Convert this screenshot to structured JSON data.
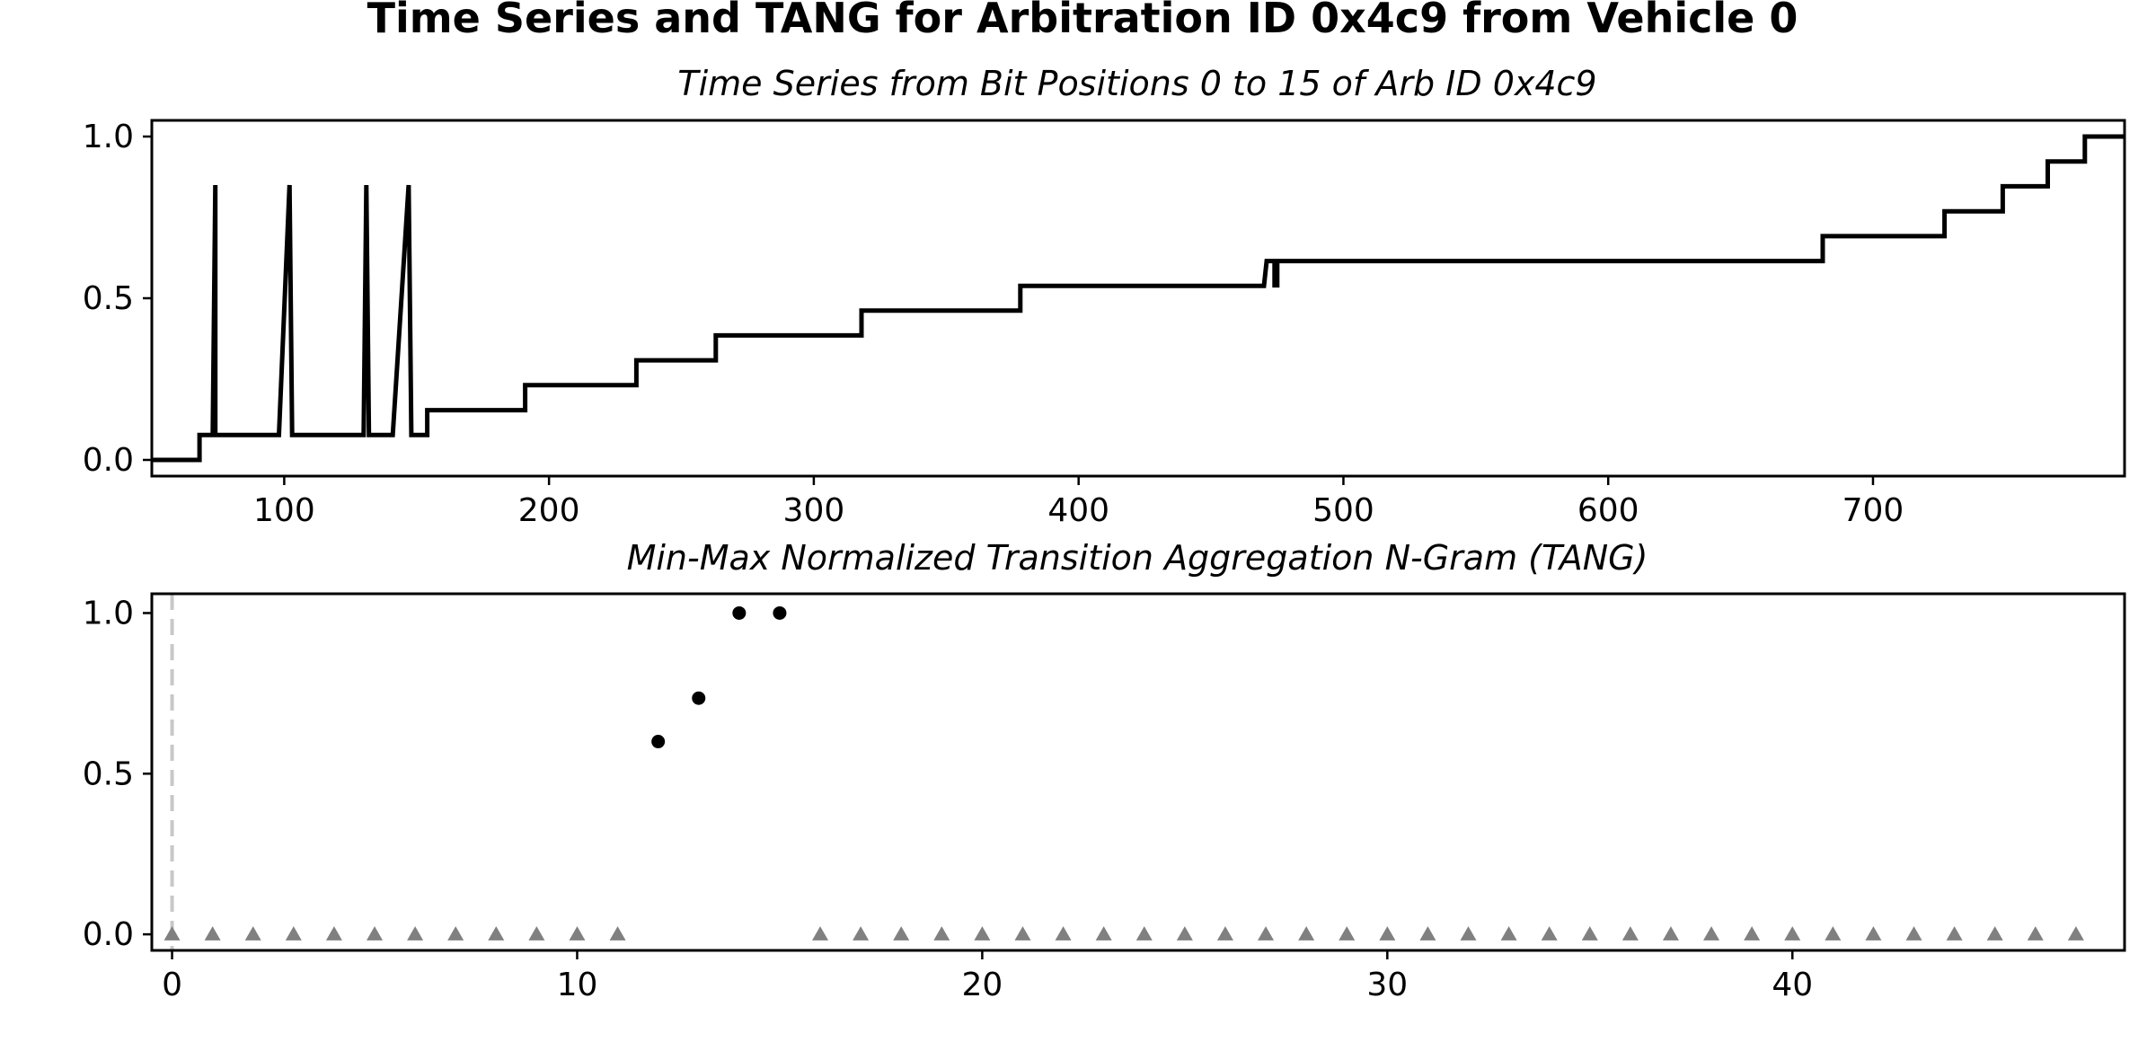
{
  "title": "Time Series and TANG for Arbitration ID 0x4c9 from Vehicle 0",
  "chart_data": [
    {
      "type": "line",
      "title": "Time Series from Bit Positions 0 to 15 of Arb ID 0x4c9",
      "xlabel": "",
      "ylabel": "",
      "xlim": [
        50,
        795
      ],
      "ylim": [
        -0.05,
        1.05
      ],
      "xticks": [
        100,
        200,
        300,
        400,
        500,
        600,
        700
      ],
      "yticks": [
        0.0,
        0.5,
        1.0
      ],
      "xtick_labels": [
        "100",
        "200",
        "300",
        "400",
        "500",
        "600",
        "700"
      ],
      "ytick_labels": [
        "0.0",
        "0.5",
        "1.0"
      ],
      "grid": false,
      "series": [
        {
          "color": "#000000",
          "x": [
            50,
            68,
            68,
            73,
            74,
            74,
            98,
            102,
            103,
            130,
            131,
            132,
            141,
            147,
            148,
            153,
            154,
            154,
            191,
            191,
            233,
            233,
            263,
            263,
            318,
            318,
            378,
            378,
            470,
            471,
            472,
            474,
            474,
            475,
            475,
            681,
            681,
            727,
            727,
            749,
            749,
            766,
            766,
            780,
            780,
            795
          ],
          "y": [
            0.0,
            0.0,
            0.077,
            0.077,
            0.85,
            0.077,
            0.077,
            0.85,
            0.077,
            0.077,
            0.85,
            0.077,
            0.077,
            0.85,
            0.077,
            0.077,
            0.077,
            0.154,
            0.154,
            0.231,
            0.231,
            0.308,
            0.308,
            0.385,
            0.385,
            0.462,
            0.462,
            0.538,
            0.538,
            0.615,
            0.615,
            0.615,
            0.54,
            0.54,
            0.615,
            0.615,
            0.692,
            0.692,
            0.769,
            0.769,
            0.846,
            0.846,
            0.923,
            0.923,
            1.0,
            1.0
          ]
        }
      ]
    },
    {
      "type": "scatter",
      "title": "Min-Max Normalized Transition Aggregation N-Gram (TANG)",
      "xlabel": "",
      "ylabel": "",
      "xlim": [
        -0.5,
        48.2
      ],
      "ylim": [
        -0.05,
        1.06
      ],
      "xticks": [
        0,
        10,
        20,
        30,
        40
      ],
      "yticks": [
        0.0,
        0.5,
        1.0
      ],
      "xtick_labels": [
        "0",
        "10",
        "20",
        "30",
        "40"
      ],
      "ytick_labels": [
        "0.0",
        "0.5",
        "1.0"
      ],
      "grid": false,
      "reference_line": {
        "x": 0,
        "style": "dashed",
        "color": "#c8c8c8"
      },
      "series": [
        {
          "marker": "circle",
          "color": "#000000",
          "x": [
            12,
            13,
            14,
            15
          ],
          "y": [
            0.6,
            0.735,
            1.0,
            1.0
          ]
        },
        {
          "marker": "triangle",
          "color": "#808080",
          "x": [
            0,
            1,
            2,
            3,
            4,
            5,
            6,
            7,
            8,
            9,
            10,
            11,
            16,
            17,
            18,
            19,
            20,
            21,
            22,
            23,
            24,
            25,
            26,
            27,
            28,
            29,
            30,
            31,
            32,
            33,
            34,
            35,
            36,
            37,
            38,
            39,
            40,
            41,
            42,
            43,
            44,
            45,
            46,
            47
          ],
          "y": [
            0,
            0,
            0,
            0,
            0,
            0,
            0,
            0,
            0,
            0,
            0,
            0,
            0,
            0,
            0,
            0,
            0,
            0,
            0,
            0,
            0,
            0,
            0,
            0,
            0,
            0,
            0,
            0,
            0,
            0,
            0,
            0,
            0,
            0,
            0,
            0,
            0,
            0,
            0,
            0,
            0,
            0,
            0,
            0
          ]
        }
      ]
    }
  ]
}
